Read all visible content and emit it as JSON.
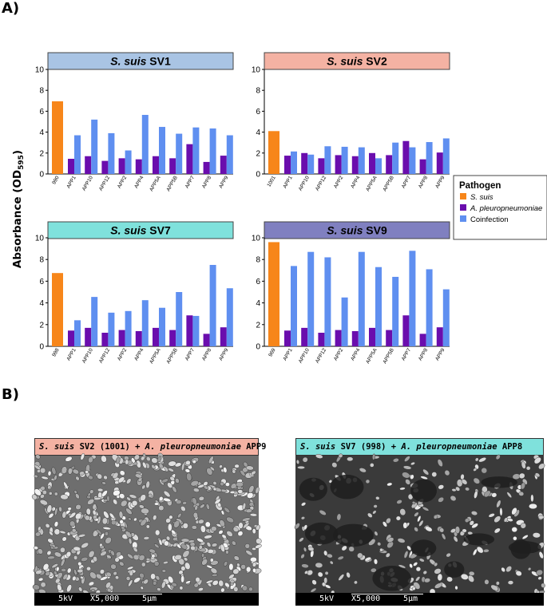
{
  "panels": {
    "a_label": "A)",
    "b_label": "B)"
  },
  "y_axis_title": "Absorbance (OD",
  "y_axis_sub": "595",
  "y_axis_close": ")",
  "legend": {
    "title": "Pathogen",
    "items": [
      {
        "label": "S. suis",
        "color": "#f7861a",
        "italic": true
      },
      {
        "label": "A. pleuropneumoniae",
        "color": "#6a0dad",
        "italic": true
      },
      {
        "label": "Coinfection",
        "color": "#5f8ff0",
        "italic": false
      }
    ]
  },
  "chart_data": [
    {
      "type": "bar",
      "title_italic": "S. suis",
      "title_rest": "SV1",
      "title_color": "#a9c4e4",
      "ylim": [
        0,
        10
      ],
      "yticks": [
        0,
        2,
        4,
        6,
        8,
        10
      ],
      "ssuis": {
        "label": "990",
        "value": 6.95
      },
      "categories": [
        "APP1",
        "APP10",
        "APP12",
        "APP2",
        "APP4",
        "APP5A",
        "APP5B",
        "APP7",
        "APP8",
        "APP9"
      ],
      "series": [
        {
          "name": "A. pleuropneumoniae",
          "values": [
            1.45,
            1.7,
            1.25,
            1.5,
            1.4,
            1.7,
            1.5,
            2.85,
            1.15,
            1.75
          ]
        },
        {
          "name": "Coinfection",
          "values": [
            3.7,
            5.2,
            3.9,
            2.25,
            5.65,
            4.5,
            3.85,
            4.45,
            4.35,
            3.7
          ]
        }
      ]
    },
    {
      "type": "bar",
      "title_italic": "S. suis",
      "title_rest": "SV2",
      "title_color": "#f4b2a3",
      "ylim": [
        0,
        10
      ],
      "yticks": [
        0,
        2,
        4,
        6,
        8,
        10
      ],
      "ssuis": {
        "label": "1001",
        "value": 4.1
      },
      "categories": [
        "APP1",
        "APP10",
        "APP12",
        "APP2",
        "APP4",
        "APP5A",
        "APP5B",
        "APP7",
        "APP8",
        "APP9"
      ],
      "series": [
        {
          "name": "A. pleuropneumoniae",
          "values": [
            1.75,
            2.0,
            1.5,
            1.8,
            1.7,
            2.0,
            1.8,
            3.15,
            1.4,
            2.05
          ]
        },
        {
          "name": "Coinfection",
          "values": [
            2.15,
            1.85,
            2.65,
            2.6,
            2.55,
            1.5,
            3.0,
            2.55,
            3.05,
            3.4
          ]
        }
      ]
    },
    {
      "type": "bar",
      "title_italic": "S. suis",
      "title_rest": "SV7",
      "title_color": "#7fe1dc",
      "ylim": [
        0,
        10
      ],
      "yticks": [
        0,
        2,
        4,
        6,
        8,
        10
      ],
      "ssuis": {
        "label": "998",
        "value": 6.75
      },
      "categories": [
        "APP1",
        "APP10",
        "APP12",
        "APP2",
        "APP4",
        "APP5A",
        "APP5B",
        "APP7",
        "APP8",
        "APP9"
      ],
      "series": [
        {
          "name": "A. pleuropneumoniae",
          "values": [
            1.45,
            1.7,
            1.25,
            1.5,
            1.4,
            1.7,
            1.5,
            2.85,
            1.15,
            1.75
          ]
        },
        {
          "name": "Coinfection",
          "values": [
            2.4,
            4.55,
            3.1,
            3.25,
            4.25,
            3.55,
            5.0,
            2.8,
            7.5,
            5.35
          ]
        }
      ]
    },
    {
      "type": "bar",
      "title_italic": "S. suis",
      "title_rest": "SV9",
      "title_color": "#8080c0",
      "ylim": [
        0,
        10
      ],
      "yticks": [
        0,
        2,
        4,
        6,
        8,
        10
      ],
      "ssuis": {
        "label": "969",
        "value": 9.6
      },
      "categories": [
        "APP1",
        "APP10",
        "APP12",
        "APP2",
        "APP4",
        "APP5A",
        "APP5B",
        "APP7",
        "APP8",
        "APP9"
      ],
      "series": [
        {
          "name": "A. pleuropneumoniae",
          "values": [
            1.45,
            1.7,
            1.25,
            1.5,
            1.4,
            1.7,
            1.5,
            2.85,
            1.15,
            1.75
          ]
        },
        {
          "name": "Coinfection",
          "values": [
            7.4,
            8.7,
            8.2,
            4.5,
            8.7,
            7.3,
            6.4,
            8.8,
            7.1,
            5.25
          ]
        }
      ]
    }
  ],
  "sem": [
    {
      "title_italic": "S. suis",
      "title_mid": " SV2 (1001) + ",
      "title_italic2": "A. pleuropneumoniae",
      "title_end": " APP9",
      "title_color": "#f4b2a3",
      "kv": "5kV",
      "mag": "X5,000",
      "scale": "5μm"
    },
    {
      "title_italic": "S. suis",
      "title_mid": " SV7 (998) + ",
      "title_italic2": "A. pleuropneumoniae",
      "title_end": " APP8",
      "title_color": "#7fe1dc",
      "kv": "5kV",
      "mag": "X5,000",
      "scale": "5μm"
    }
  ]
}
